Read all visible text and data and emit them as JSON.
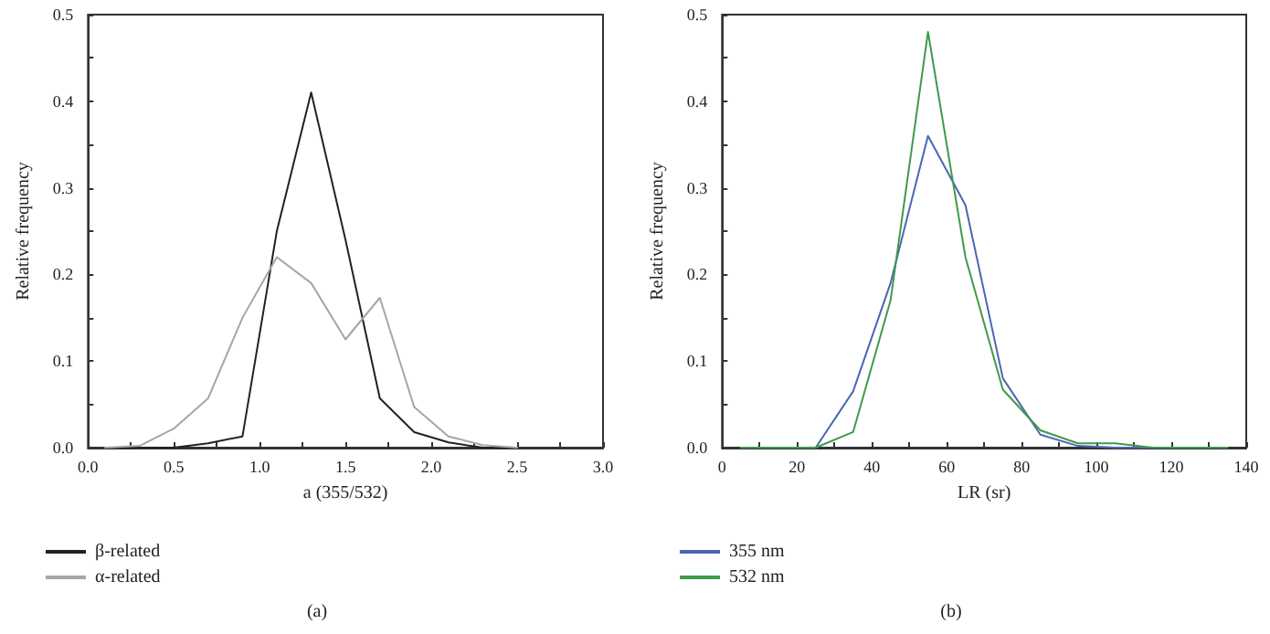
{
  "chart_data": [
    {
      "type": "line",
      "xlabel": "a (355/532)",
      "ylabel": "Relative frequency",
      "annotations": [
        "(a)"
      ],
      "legend": "bottom left",
      "grid": false,
      "marker": "none",
      "line_style": "solid",
      "x": [
        0.1,
        0.3,
        0.5,
        0.7,
        0.9,
        1.1,
        1.3,
        1.5,
        1.7,
        1.9,
        2.1,
        2.3,
        2.5
      ],
      "series": [
        {
          "name": "β-related",
          "color": "#222222",
          "values": [
            0,
            0,
            0,
            0.005,
            0.013,
            0.25,
            0.41,
            0.24,
            0.057,
            0.018,
            0.006,
            0,
            0
          ]
        },
        {
          "name": "α-related",
          "color": "#a6a6a6",
          "values": [
            0,
            0.002,
            0.022,
            0.057,
            0.15,
            0.22,
            0.19,
            0.125,
            0.173,
            0.047,
            0.013,
            0.003,
            0
          ]
        }
      ],
      "xlim": [
        0,
        3
      ],
      "xticks": [
        {
          "value": 0,
          "label": "0.0"
        },
        {
          "value": 0.5,
          "label": "0.5"
        },
        {
          "value": 1,
          "label": "1.0"
        },
        {
          "value": 1.5,
          "label": "1.5"
        },
        {
          "value": 2,
          "label": "2.0"
        },
        {
          "value": 2.5,
          "label": "2.5"
        },
        {
          "value": 3,
          "label": "3.0"
        }
      ],
      "ylim": [
        0,
        0.5
      ],
      "yticks": [
        {
          "value": 0,
          "label": "0.0"
        },
        0.1,
        0.2,
        0.3,
        0.4,
        0.5
      ]
    },
    {
      "type": "line",
      "xlabel": "LR (sr)",
      "ylabel": "Relative frequency",
      "annotations": [
        "(b)"
      ],
      "legend": "bottom left",
      "grid": false,
      "marker": "none",
      "line_style": "solid",
      "x": [
        5,
        15,
        25,
        35,
        45,
        55,
        65,
        75,
        85,
        95,
        105,
        115,
        125,
        135
      ],
      "series": [
        {
          "name": "355 nm",
          "color": "#4a66b5",
          "values": [
            0,
            0,
            0,
            0.065,
            0.19,
            0.36,
            0.28,
            0.08,
            0.015,
            0.002,
            0,
            0,
            0,
            0
          ]
        },
        {
          "name": "532 nm",
          "color": "#3f9a4a",
          "values": [
            0,
            0,
            0,
            0.018,
            0.17,
            0.48,
            0.22,
            0.067,
            0.02,
            0.005,
            0.005,
            0,
            0,
            0
          ]
        }
      ],
      "xlim": [
        0,
        140
      ],
      "xticks": [
        0,
        20,
        40,
        60,
        80,
        100,
        120,
        140
      ],
      "ylim": [
        0,
        0.5
      ],
      "yticks": [
        {
          "value": 0,
          "label": "0.0"
        },
        0.1,
        0.2,
        0.3,
        0.4,
        0.5
      ]
    }
  ]
}
